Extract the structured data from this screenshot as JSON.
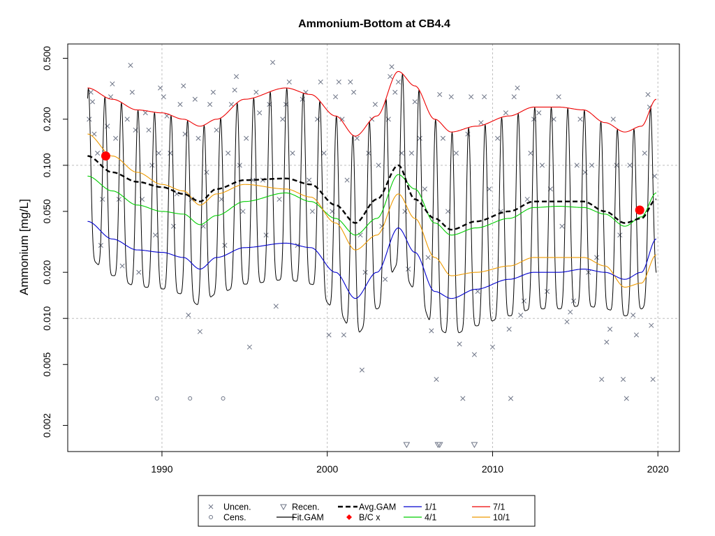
{
  "chart_data": {
    "type": "line",
    "title": "Ammonium-Bottom at CB4.4",
    "xlabel": "",
    "ylabel": "Ammonium [mg/L]",
    "y_scale": "log",
    "xlim": [
      1984.3,
      2021.3
    ],
    "ylim": [
      0.00135,
      0.62
    ],
    "x_ticks": [
      1990,
      2000,
      2010,
      2020
    ],
    "x_tick_labels": [
      "1990",
      "2000",
      "2010",
      "2020"
    ],
    "y_ticks": [
      0.002,
      0.005,
      0.01,
      0.02,
      0.05,
      0.1,
      0.2,
      0.5
    ],
    "y_tick_labels": [
      "0.002",
      "0.005",
      "0.010",
      "0.020",
      "0.050",
      "0.100",
      "0.200",
      "0.500"
    ],
    "grid": true,
    "grid_y_values": [
      0.01,
      0.1
    ],
    "legend_position": "bottom",
    "colors": {
      "uncen": "#6d7486",
      "cens": "#6d7486",
      "fit": "#000000",
      "avg": "#000000",
      "bc": "#ff0000",
      "jan1": "#0000cd",
      "apr1": "#00cd00",
      "jul1": "#ee0000",
      "oct1": "#ee9a00",
      "grid": "#bebebe"
    },
    "legend": [
      {
        "key": "uncen",
        "label": "Uncen.",
        "marker": "x"
      },
      {
        "key": "cens",
        "label": "Cens.",
        "marker": "circle"
      },
      {
        "key": "recen",
        "label": "Recen.",
        "marker": "triangle-down"
      },
      {
        "key": "fit",
        "label": "Fit.GAM",
        "marker": "line"
      },
      {
        "key": "avg",
        "label": "Avg.GAM",
        "marker": "dashed-line"
      },
      {
        "key": "bc",
        "label": "B/C x",
        "marker": "diamond"
      },
      {
        "key": "jan1",
        "label": "1/1",
        "marker": "line"
      },
      {
        "key": "apr1",
        "label": "4/1",
        "marker": "line"
      },
      {
        "key": "jul1",
        "label": "7/1",
        "marker": "line"
      },
      {
        "key": "oct1",
        "label": "10/1",
        "marker": "line"
      }
    ],
    "series": [
      {
        "name": "7/1",
        "key": "jul1",
        "x": [
          1985.5,
          1987,
          1988.5,
          1990,
          1991.3,
          1992.3,
          1993.3,
          1995,
          1997.5,
          1999,
          2000.5,
          2001.7,
          2003,
          2004.3,
          2005.3,
          2006.5,
          2007.5,
          2009,
          2011,
          2012.5,
          2014,
          2015.5,
          2016.8,
          2018,
          2019,
          2019.9
        ],
        "y": [
          0.32,
          0.27,
          0.23,
          0.22,
          0.2,
          0.18,
          0.2,
          0.27,
          0.32,
          0.29,
          0.21,
          0.155,
          0.21,
          0.41,
          0.33,
          0.2,
          0.165,
          0.18,
          0.21,
          0.24,
          0.24,
          0.23,
          0.19,
          0.165,
          0.18,
          0.27
        ]
      },
      {
        "name": "4/1",
        "key": "apr1",
        "x": [
          1985.5,
          1987,
          1988.5,
          1990,
          1991.3,
          1992.3,
          1993.3,
          1995,
          1997.5,
          1999,
          2000.5,
          2001.7,
          2003,
          2004.3,
          2005.3,
          2006.5,
          2007.5,
          2009,
          2011,
          2012.5,
          2014,
          2015.5,
          2016.8,
          2018,
          2019,
          2019.9
        ],
        "y": [
          0.085,
          0.068,
          0.055,
          0.05,
          0.048,
          0.041,
          0.047,
          0.058,
          0.066,
          0.058,
          0.045,
          0.035,
          0.045,
          0.087,
          0.07,
          0.042,
          0.035,
          0.039,
          0.045,
          0.053,
          0.054,
          0.053,
          0.048,
          0.04,
          0.046,
          0.066
        ]
      },
      {
        "name": "10/1",
        "key": "oct1",
        "x": [
          1985.5,
          1987,
          1988.5,
          1990,
          1991.3,
          1992.3,
          1993.3,
          1995,
          1997.5,
          1999,
          2000.5,
          2001.7,
          2003,
          2004.3,
          2005.3,
          2006.5,
          2007.5,
          2009,
          2011,
          2012.5,
          2014,
          2015.5,
          2016.8,
          2018,
          2019,
          2019.9
        ],
        "y": [
          0.16,
          0.115,
          0.09,
          0.075,
          0.068,
          0.055,
          0.065,
          0.075,
          0.07,
          0.062,
          0.042,
          0.028,
          0.035,
          0.065,
          0.045,
          0.025,
          0.019,
          0.02,
          0.022,
          0.025,
          0.025,
          0.025,
          0.022,
          0.016,
          0.017,
          0.026
        ]
      },
      {
        "name": "1/1",
        "key": "jan1",
        "x": [
          1985.5,
          1987,
          1988.5,
          1990,
          1991.3,
          1992.3,
          1993.3,
          1995,
          1997.5,
          1999,
          2000.5,
          2001.7,
          2003,
          2004.3,
          2005.3,
          2006.5,
          2007.5,
          2009,
          2011,
          2012.5,
          2014,
          2015.5,
          2016.8,
          2018,
          2019,
          2019.9
        ],
        "y": [
          0.043,
          0.033,
          0.028,
          0.027,
          0.025,
          0.021,
          0.025,
          0.029,
          0.031,
          0.029,
          0.02,
          0.0135,
          0.02,
          0.039,
          0.027,
          0.015,
          0.0135,
          0.0155,
          0.018,
          0.02,
          0.02,
          0.021,
          0.02,
          0.018,
          0.02,
          0.033
        ]
      },
      {
        "name": "Avg.GAM",
        "key": "avg",
        "x": [
          1985.5,
          1987,
          1988.5,
          1990,
          1991.3,
          1992.3,
          1993.3,
          1995,
          1997.5,
          1999,
          2000.5,
          2001.7,
          2003,
          2004.3,
          2005.3,
          2006.5,
          2007.5,
          2009,
          2011,
          2012.5,
          2014,
          2015.5,
          2016.8,
          2018,
          2019,
          2019.9
        ],
        "y": [
          0.115,
          0.09,
          0.078,
          0.072,
          0.065,
          0.058,
          0.07,
          0.08,
          0.082,
          0.075,
          0.055,
          0.042,
          0.06,
          0.1,
          0.06,
          0.045,
          0.038,
          0.043,
          0.05,
          0.058,
          0.058,
          0.058,
          0.05,
          0.042,
          0.045,
          0.06
        ]
      }
    ],
    "fit_gam": {
      "name": "Fit.GAM",
      "key": "fit",
      "x_start": 1985.5,
      "x_end": 2019.9,
      "step": 0.025,
      "peak_month_fraction": 0.55,
      "peak_sharpness": 2.6
    },
    "bc_points": [
      {
        "x": 1986.6,
        "y": 0.115
      },
      {
        "x": 2018.9,
        "y": 0.051
      }
    ],
    "censored_points": [
      {
        "x": 1989.7,
        "y": 0.003
      },
      {
        "x": 1991.7,
        "y": 0.003
      },
      {
        "x": 1993.7,
        "y": 0.003
      }
    ],
    "recensored_points": [
      {
        "x": 2004.8,
        "y": 0.0015
      },
      {
        "x": 2006.7,
        "y": 0.0015
      },
      {
        "x": 2006.8,
        "y": 0.0015
      },
      {
        "x": 2008.9,
        "y": 0.0015
      }
    ],
    "uncensored_points": [
      [
        1985.6,
        0.2
      ],
      [
        1985.7,
        0.3
      ],
      [
        1985.8,
        0.26
      ],
      [
        1985.9,
        0.16
      ],
      [
        1986.1,
        0.12
      ],
      [
        1986.3,
        0.03
      ],
      [
        1986.4,
        0.06
      ],
      [
        1986.7,
        0.18
      ],
      [
        1986.9,
        0.28
      ],
      [
        1987.0,
        0.34
      ],
      [
        1987.2,
        0.15
      ],
      [
        1987.4,
        0.06
      ],
      [
        1987.6,
        0.022
      ],
      [
        1987.9,
        0.2
      ],
      [
        1988.1,
        0.45
      ],
      [
        1988.2,
        0.3
      ],
      [
        1988.4,
        0.17
      ],
      [
        1988.6,
        0.02
      ],
      [
        1988.8,
        0.06
      ],
      [
        1989.0,
        0.22
      ],
      [
        1989.2,
        0.17
      ],
      [
        1989.4,
        0.1
      ],
      [
        1989.6,
        0.035
      ],
      [
        1989.8,
        0.12
      ],
      [
        1989.9,
        0.32
      ],
      [
        1990.1,
        0.28
      ],
      [
        1990.3,
        0.21
      ],
      [
        1990.5,
        0.12
      ],
      [
        1990.7,
        0.04
      ],
      [
        1990.9,
        0.065
      ],
      [
        1991.1,
        0.25
      ],
      [
        1991.3,
        0.33
      ],
      [
        1991.4,
        0.16
      ],
      [
        1991.6,
        0.0105
      ],
      [
        1991.8,
        0.06
      ],
      [
        1992.0,
        0.27
      ],
      [
        1992.2,
        0.15
      ],
      [
        1992.3,
        0.0082
      ],
      [
        1992.5,
        0.04
      ],
      [
        1992.7,
        0.09
      ],
      [
        1992.9,
        0.25
      ],
      [
        1993.1,
        0.3
      ],
      [
        1993.3,
        0.17
      ],
      [
        1993.6,
        0.06
      ],
      [
        1993.8,
        0.03
      ],
      [
        1994.0,
        0.12
      ],
      [
        1994.2,
        0.25
      ],
      [
        1994.4,
        0.31
      ],
      [
        1994.5,
        0.38
      ],
      [
        1994.7,
        0.1
      ],
      [
        1994.9,
        0.05
      ],
      [
        1995.1,
        0.15
      ],
      [
        1995.3,
        0.0065
      ],
      [
        1995.5,
        0.08
      ],
      [
        1995.7,
        0.3
      ],
      [
        1995.9,
        0.22
      ],
      [
        1996.1,
        0.08
      ],
      [
        1996.3,
        0.035
      ],
      [
        1996.5,
        0.25
      ],
      [
        1996.7,
        0.47
      ],
      [
        1996.9,
        0.012
      ],
      [
        1997.1,
        0.06
      ],
      [
        1997.3,
        0.2
      ],
      [
        1997.5,
        0.25
      ],
      [
        1997.7,
        0.35
      ],
      [
        1997.9,
        0.12
      ],
      [
        1998.2,
        0.03
      ],
      [
        1998.5,
        0.27
      ],
      [
        1998.7,
        0.3
      ],
      [
        1998.9,
        0.08
      ],
      [
        1999.1,
        0.05
      ],
      [
        1999.4,
        0.2
      ],
      [
        1999.6,
        0.35
      ],
      [
        1999.8,
        0.12
      ],
      [
        2000.1,
        0.0078
      ],
      [
        2000.3,
        0.05
      ],
      [
        2000.5,
        0.28
      ],
      [
        2000.7,
        0.35
      ],
      [
        2000.9,
        0.2
      ],
      [
        2001.0,
        0.0078
      ],
      [
        2001.2,
        0.08
      ],
      [
        2001.4,
        0.35
      ],
      [
        2001.6,
        0.3
      ],
      [
        2001.8,
        0.15
      ],
      [
        2002.0,
        0.035
      ],
      [
        2002.1,
        0.0046
      ],
      [
        2002.3,
        0.02
      ],
      [
        2002.5,
        0.12
      ],
      [
        2002.7,
        0.2
      ],
      [
        2002.9,
        0.25
      ],
      [
        2003.1,
        0.1
      ],
      [
        2003.3,
        0.04
      ],
      [
        2003.5,
        0.018
      ],
      [
        2003.7,
        0.2
      ],
      [
        2003.8,
        0.38
      ],
      [
        2003.9,
        0.44
      ],
      [
        2004.1,
        0.3
      ],
      [
        2004.3,
        0.35
      ],
      [
        2004.5,
        0.12
      ],
      [
        2004.7,
        0.05
      ],
      [
        2004.9,
        0.021
      ],
      [
        2005.1,
        0.12
      ],
      [
        2005.3,
        0.26
      ],
      [
        2005.6,
        0.15
      ],
      [
        2005.9,
        0.07
      ],
      [
        2006.1,
        0.025
      ],
      [
        2006.3,
        0.0083
      ],
      [
        2006.6,
        0.004
      ],
      [
        2006.8,
        0.29
      ],
      [
        2007.0,
        0.15
      ],
      [
        2007.3,
        0.05
      ],
      [
        2007.5,
        0.28
      ],
      [
        2007.8,
        0.12
      ],
      [
        2008.0,
        0.0068
      ],
      [
        2008.2,
        0.003
      ],
      [
        2008.5,
        0.16
      ],
      [
        2008.7,
        0.28
      ],
      [
        2008.9,
        0.0058
      ],
      [
        2009.1,
        0.015
      ],
      [
        2009.3,
        0.19
      ],
      [
        2009.5,
        0.28
      ],
      [
        2009.8,
        0.07
      ],
      [
        2010.0,
        0.0065
      ],
      [
        2010.3,
        0.15
      ],
      [
        2010.5,
        0.05
      ],
      [
        2010.8,
        0.22
      ],
      [
        2011.0,
        0.0085
      ],
      [
        2011.1,
        0.003
      ],
      [
        2011.3,
        0.28
      ],
      [
        2011.5,
        0.32
      ],
      [
        2011.7,
        0.0105
      ],
      [
        2011.9,
        0.013
      ],
      [
        2012.1,
        0.06
      ],
      [
        2012.3,
        0.12
      ],
      [
        2012.5,
        0.2
      ],
      [
        2012.8,
        0.22
      ],
      [
        2013.0,
        0.1
      ],
      [
        2013.3,
        0.015
      ],
      [
        2013.5,
        0.07
      ],
      [
        2013.7,
        0.2
      ],
      [
        2014.0,
        0.28
      ],
      [
        2014.2,
        0.04
      ],
      [
        2014.5,
        0.0095
      ],
      [
        2014.7,
        0.011
      ],
      [
        2014.9,
        0.013
      ],
      [
        2015.1,
        0.1
      ],
      [
        2015.3,
        0.2
      ],
      [
        2015.6,
        0.09
      ],
      [
        2015.8,
        0.02
      ],
      [
        2016.0,
        0.1
      ],
      [
        2016.3,
        0.025
      ],
      [
        2016.6,
        0.004
      ],
      [
        2016.9,
        0.007
      ],
      [
        2017.1,
        0.0085
      ],
      [
        2017.3,
        0.2
      ],
      [
        2017.5,
        0.1
      ],
      [
        2017.7,
        0.035
      ],
      [
        2017.9,
        0.004
      ],
      [
        2018.1,
        0.003
      ],
      [
        2018.3,
        0.1
      ],
      [
        2018.5,
        0.0105
      ],
      [
        2018.7,
        0.0078
      ],
      [
        2019.0,
        0.05
      ],
      [
        2019.2,
        0.12
      ],
      [
        2019.4,
        0.29
      ],
      [
        2019.5,
        0.24
      ],
      [
        2019.6,
        0.009
      ],
      [
        2019.7,
        0.004
      ],
      [
        2019.8,
        0.085
      ]
    ]
  }
}
